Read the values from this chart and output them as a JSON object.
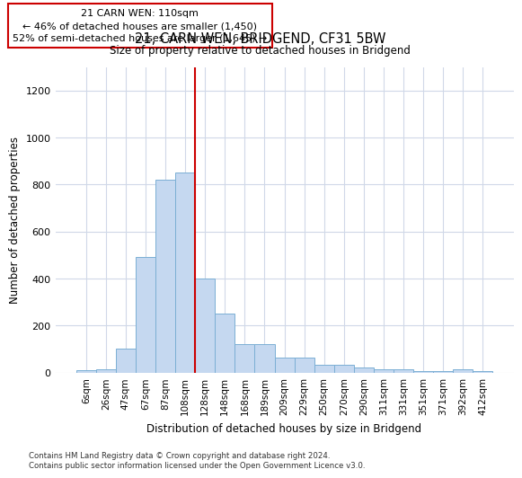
{
  "title1": "21, CARN WEN, BRIDGEND, CF31 5BW",
  "title2": "Size of property relative to detached houses in Bridgend",
  "xlabel": "Distribution of detached houses by size in Bridgend",
  "ylabel": "Number of detached properties",
  "bar_color": "#c5d8f0",
  "bar_edge_color": "#7bafd4",
  "categories": [
    "6sqm",
    "26sqm",
    "47sqm",
    "67sqm",
    "87sqm",
    "108sqm",
    "128sqm",
    "148sqm",
    "168sqm",
    "189sqm",
    "209sqm",
    "229sqm",
    "250sqm",
    "270sqm",
    "290sqm",
    "311sqm",
    "331sqm",
    "351sqm",
    "371sqm",
    "392sqm",
    "412sqm"
  ],
  "values": [
    8,
    15,
    100,
    490,
    820,
    850,
    400,
    250,
    120,
    120,
    65,
    65,
    32,
    32,
    20,
    14,
    14,
    5,
    4,
    14,
    4
  ],
  "vline_x": 5.5,
  "vline_color": "#cc0000",
  "annotation_text": "21 CARN WEN: 110sqm\n← 46% of detached houses are smaller (1,450)\n52% of semi-detached houses are larger (1,645) →",
  "annotation_box_color": "#ffffff",
  "annotation_box_edge": "#cc0000",
  "ylim": [
    0,
    1300
  ],
  "yticks": [
    0,
    200,
    400,
    600,
    800,
    1000,
    1200
  ],
  "footnote": "Contains HM Land Registry data © Crown copyright and database right 2024.\nContains public sector information licensed under the Open Government Licence v3.0.",
  "background_color": "#ffffff",
  "grid_color": "#d0d8e8"
}
